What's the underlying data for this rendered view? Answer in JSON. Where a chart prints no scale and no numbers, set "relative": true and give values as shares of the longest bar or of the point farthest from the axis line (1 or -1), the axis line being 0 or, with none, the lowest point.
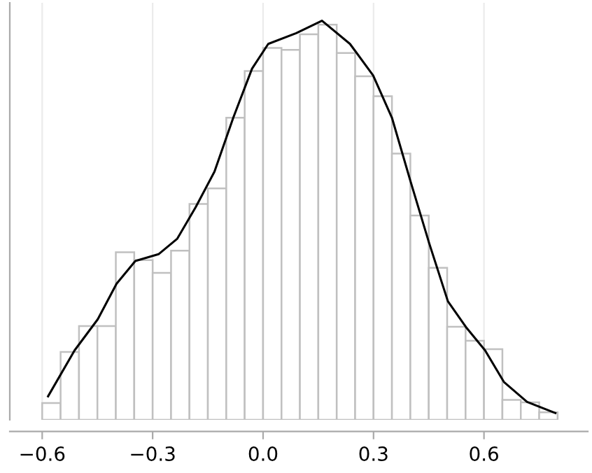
{
  "chart_data": {
    "type": "histogram",
    "relative": true,
    "bins": [
      -0.6,
      -0.55,
      -0.5,
      -0.45,
      -0.4,
      -0.35,
      -0.3,
      -0.25,
      -0.2,
      -0.15,
      -0.1,
      -0.05,
      0.0,
      0.05,
      0.1,
      0.15,
      0.2,
      0.25,
      0.3,
      0.35,
      0.4,
      0.45,
      0.5,
      0.55,
      0.6,
      0.65,
      0.7,
      0.75,
      0.8
    ],
    "series": [
      {
        "color": "#c0c0c0",
        "values": [
          0.042,
          0.17,
          0.235,
          0.235,
          0.42,
          0.4,
          0.368,
          0.424,
          0.541,
          0.58,
          0.757,
          0.874,
          0.932,
          0.927,
          0.966,
          0.99,
          0.919,
          0.861,
          0.811,
          0.667,
          0.512,
          0.381,
          0.233,
          0.198,
          0.177,
          0.05,
          0.044,
          0.019
        ]
      },
      {
        "type": "line",
        "color": "#000000",
        "x": [
          -0.584,
          -0.512,
          -0.449,
          -0.398,
          -0.347,
          -0.284,
          -0.233,
          -0.183,
          -0.132,
          -0.081,
          -0.03,
          0.014,
          0.09,
          0.16,
          0.236,
          0.299,
          0.35,
          0.4,
          0.451,
          0.502,
          0.553,
          0.603,
          0.654,
          0.717,
          0.794
        ],
        "values": [
          0.059,
          0.174,
          0.252,
          0.341,
          0.398,
          0.415,
          0.454,
          0.533,
          0.622,
          0.757,
          0.88,
          0.942,
          0.969,
          1.0,
          0.942,
          0.863,
          0.757,
          0.599,
          0.443,
          0.297,
          0.23,
          0.174,
          0.095,
          0.045,
          0.017
        ]
      }
    ],
    "xlim": [
      -0.688,
      0.882
    ],
    "xticks": [
      {
        "value": -0.6,
        "label": "−0.6"
      },
      {
        "value": -0.3,
        "label": "−0.3"
      },
      {
        "value": 0.0,
        "label": "0.0"
      },
      {
        "value": 0.3,
        "label": "0.3"
      },
      {
        "value": 0.6,
        "label": "0.6"
      }
    ],
    "grid": "x",
    "tick_labels": "x"
  }
}
